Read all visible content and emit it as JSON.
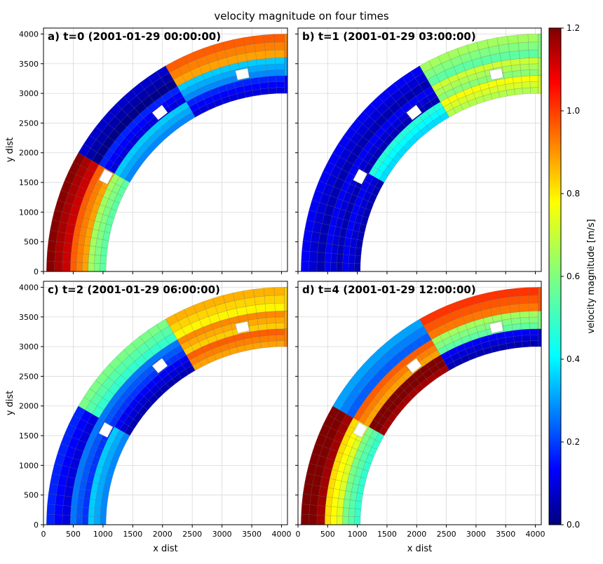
{
  "chart_data": {
    "type": "heatmap",
    "title": "velocity magnitude on four times",
    "colorbar": {
      "label": "velocity magnitude [m/s]",
      "colormap": "jet",
      "range": [
        0.0,
        1.2
      ],
      "ticks": [
        0.0,
        0.2,
        0.4,
        0.6,
        0.8,
        1.0,
        1.2
      ],
      "tick_labels": [
        "0.0",
        "0.2",
        "0.4",
        "0.6",
        "0.8",
        "1.0",
        "1.2"
      ]
    },
    "x_axis": {
      "label": "x dist",
      "range": [
        0,
        4100
      ],
      "ticks": [
        0,
        500,
        1000,
        1500,
        2000,
        2500,
        3000,
        3500,
        4000
      ],
      "tick_labels": [
        "0",
        "500",
        "1000",
        "1500",
        "2000",
        "2500",
        "3000",
        "3500",
        "4000"
      ]
    },
    "y_axis": {
      "label": "y dist",
      "range": [
        0,
        4100
      ],
      "ticks": [
        0,
        500,
        1000,
        1500,
        2000,
        2500,
        3000,
        3500,
        4000
      ],
      "tick_labels": [
        "0",
        "500",
        "1000",
        "1500",
        "2000",
        "2500",
        "3000",
        "3500",
        "4000"
      ]
    },
    "grid": true,
    "mesh": {
      "shape": "curved channel (quarter annulus with straight extension)",
      "channel_width_bands": [
        {
          "band": 1,
          "inner": 3000,
          "outer": 3300
        },
        {
          "band": 2,
          "inner": 3300,
          "outer": 3600
        },
        {
          "band": 3,
          "inner": 3600,
          "outer": 4000
        }
      ],
      "groynes": [
        {
          "angle_deg": 28
        },
        {
          "angle_deg": 52
        },
        {
          "angle_deg": 78
        }
      ]
    },
    "panels": [
      {
        "label": "a) t=0 (2001-01-29 00:00:00)",
        "band_velocity": [
          [
            0.6,
            0.9,
            1.15
          ],
          [
            0.35,
            0.15,
            0.05
          ],
          [
            0.15,
            0.35,
            0.9
          ]
        ]
      },
      {
        "label": "b) t=1 (2001-01-29 03:00:00)",
        "band_velocity": [
          [
            0.1,
            0.1,
            0.1
          ],
          [
            0.45,
            0.1,
            0.1
          ],
          [
            0.7,
            0.65,
            0.6
          ]
        ]
      },
      {
        "label": "c) t=2 (2001-01-29 06:00:00)",
        "band_velocity": [
          [
            0.35,
            0.25,
            0.15
          ],
          [
            0.1,
            0.25,
            0.55
          ],
          [
            0.9,
            0.85,
            0.8
          ]
        ]
      },
      {
        "label": "d) t=4 (2001-01-29 12:00:00)",
        "band_velocity": [
          [
            0.55,
            0.75,
            1.2
          ],
          [
            1.2,
            0.9,
            0.3
          ],
          [
            0.1,
            0.6,
            0.95
          ]
        ]
      }
    ]
  }
}
